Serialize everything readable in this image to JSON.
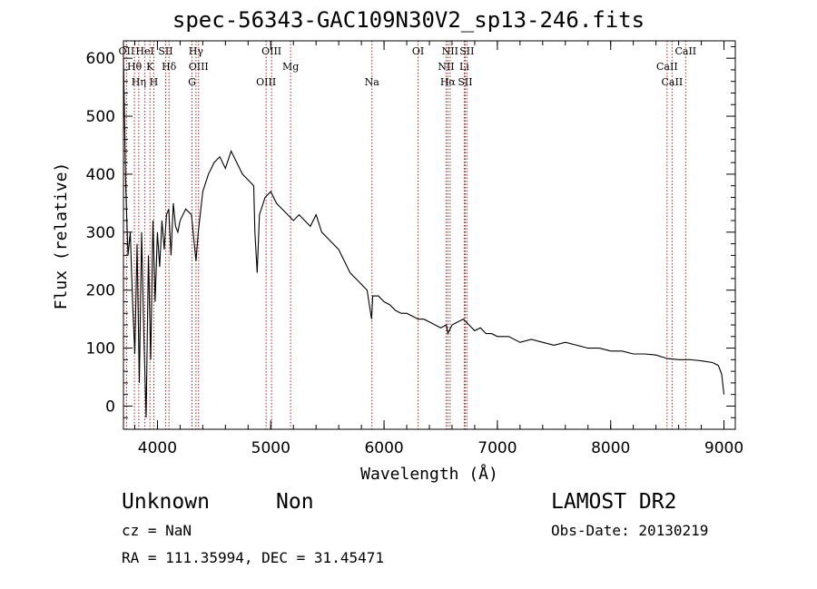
{
  "chart_data": {
    "type": "line",
    "title": "spec-56343-GAC109N30V2_sp13-246.fits",
    "xlabel": "Wavelength (Å)",
    "ylabel": "Flux (relative)",
    "xlim": [
      3700,
      9100
    ],
    "ylim": [
      -40,
      630
    ],
    "xticks": [
      4000,
      5000,
      6000,
      7000,
      8000,
      9000
    ],
    "yticks": [
      0,
      100,
      200,
      300,
      400,
      500,
      600
    ],
    "grid": false,
    "line_color": "#000000",
    "marker_color": "#b22222",
    "spectrum": {
      "x": [
        3700,
        3720,
        3740,
        3760,
        3780,
        3800,
        3820,
        3840,
        3860,
        3880,
        3900,
        3920,
        3940,
        3960,
        3980,
        4000,
        4020,
        4040,
        4060,
        4080,
        4100,
        4120,
        4140,
        4160,
        4180,
        4200,
        4250,
        4300,
        4340,
        4360,
        4400,
        4450,
        4500,
        4550,
        4600,
        4650,
        4700,
        4750,
        4800,
        4850,
        4860,
        4880,
        4900,
        4950,
        5000,
        5050,
        5100,
        5150,
        5200,
        5250,
        5300,
        5350,
        5400,
        5450,
        5500,
        5550,
        5600,
        5650,
        5700,
        5750,
        5800,
        5850,
        5890,
        5900,
        5950,
        6000,
        6050,
        6100,
        6150,
        6200,
        6250,
        6300,
        6350,
        6400,
        6450,
        6500,
        6550,
        6563,
        6600,
        6650,
        6700,
        6750,
        6800,
        6850,
        6900,
        6950,
        7000,
        7100,
        7200,
        7300,
        7400,
        7500,
        7600,
        7700,
        7800,
        7900,
        8000,
        8100,
        8200,
        8300,
        8400,
        8500,
        8600,
        8700,
        8800,
        8900,
        8950,
        8980,
        9000
      ],
      "y": [
        600,
        380,
        260,
        300,
        180,
        90,
        280,
        40,
        300,
        120,
        -20,
        260,
        80,
        320,
        180,
        300,
        240,
        320,
        270,
        330,
        340,
        260,
        350,
        310,
        300,
        320,
        340,
        330,
        250,
        300,
        370,
        400,
        420,
        430,
        410,
        440,
        420,
        400,
        390,
        380,
        300,
        230,
        330,
        360,
        370,
        350,
        340,
        330,
        320,
        330,
        320,
        310,
        330,
        300,
        290,
        280,
        270,
        250,
        230,
        220,
        210,
        200,
        150,
        190,
        190,
        180,
        175,
        165,
        160,
        160,
        155,
        150,
        150,
        145,
        140,
        135,
        140,
        125,
        140,
        145,
        150,
        140,
        130,
        135,
        125,
        125,
        120,
        120,
        110,
        115,
        110,
        105,
        110,
        105,
        100,
        100,
        95,
        95,
        90,
        90,
        88,
        82,
        80,
        80,
        78,
        75,
        70,
        55,
        20
      ]
    },
    "lines": [
      {
        "label": "OII",
        "x": 3727
      },
      {
        "label": "Hθ",
        "x": 3797
      },
      {
        "label": "Hη",
        "x": 3835
      },
      {
        "label": "HeI",
        "x": 3889
      },
      {
        "label": "K",
        "x": 3934
      },
      {
        "label": "H",
        "x": 3968
      },
      {
        "label": "SII",
        "x": 4072
      },
      {
        "label": "Hδ",
        "x": 4102
      },
      {
        "label": "G",
        "x": 4305
      },
      {
        "label": "Hγ",
        "x": 4340
      },
      {
        "label": "OIII",
        "x": 4363
      },
      {
        "label": "OIII",
        "x": 4959
      },
      {
        "label": "OIII",
        "x": 5007
      },
      {
        "label": "Mg",
        "x": 5175
      },
      {
        "label": "Na",
        "x": 5893
      },
      {
        "label": "OI",
        "x": 6300
      },
      {
        "label": "NII",
        "x": 6548
      },
      {
        "label": "Hα",
        "x": 6563
      },
      {
        "label": "NII",
        "x": 6583
      },
      {
        "label": "Li",
        "x": 6708
      },
      {
        "label": "SII",
        "x": 6716
      },
      {
        "label": "SII",
        "x": 6731
      },
      {
        "label": "CaII",
        "x": 8498
      },
      {
        "label": "CaII",
        "x": 8542
      },
      {
        "label": "CaII",
        "x": 8662
      }
    ]
  },
  "info": {
    "class": "Unknown",
    "subclass": "Non",
    "survey": "LAMOST DR2",
    "cz": "cz = NaN",
    "obs_date": "Obs-Date: 20130219",
    "coords": "RA = 111.35994, DEC =  31.45471"
  }
}
